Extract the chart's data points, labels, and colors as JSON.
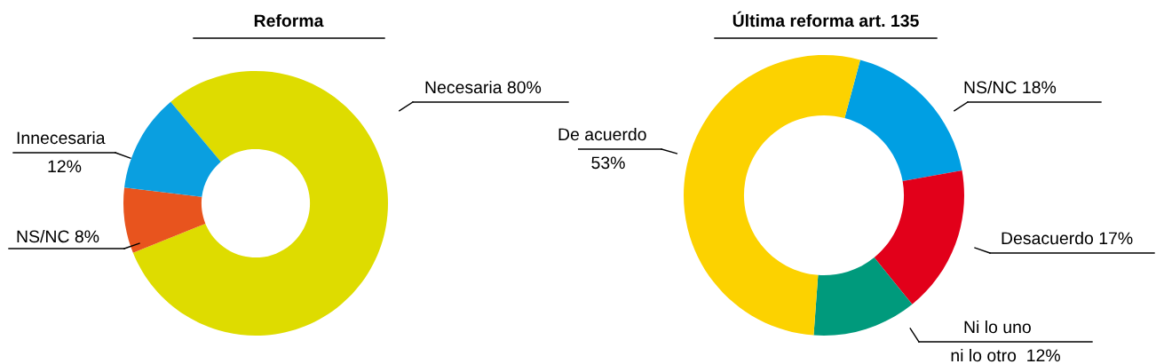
{
  "chart_data": [
    {
      "type": "donut",
      "title": "Reforma",
      "categories": [
        "Necesaria",
        "NS/NC",
        "Innecesaria"
      ],
      "values": [
        80,
        8,
        12
      ],
      "value_labels": [
        "80%",
        "8%",
        "12%"
      ],
      "colors": [
        "#dedc00",
        "#e8541e",
        "#0a9fe0"
      ]
    },
    {
      "type": "donut",
      "title": "Última reforma art. 135",
      "categories": [
        "NS/NC",
        "Desacuerdo",
        "Ni lo uno\nni lo otro",
        "De acuerdo"
      ],
      "values": [
        18,
        17,
        12,
        53
      ],
      "value_labels": [
        "18%",
        "17%",
        " 12%",
        "53%"
      ],
      "colors": [
        "#009fe3",
        "#e2001a",
        "#009a7c",
        "#fcd200"
      ]
    }
  ]
}
